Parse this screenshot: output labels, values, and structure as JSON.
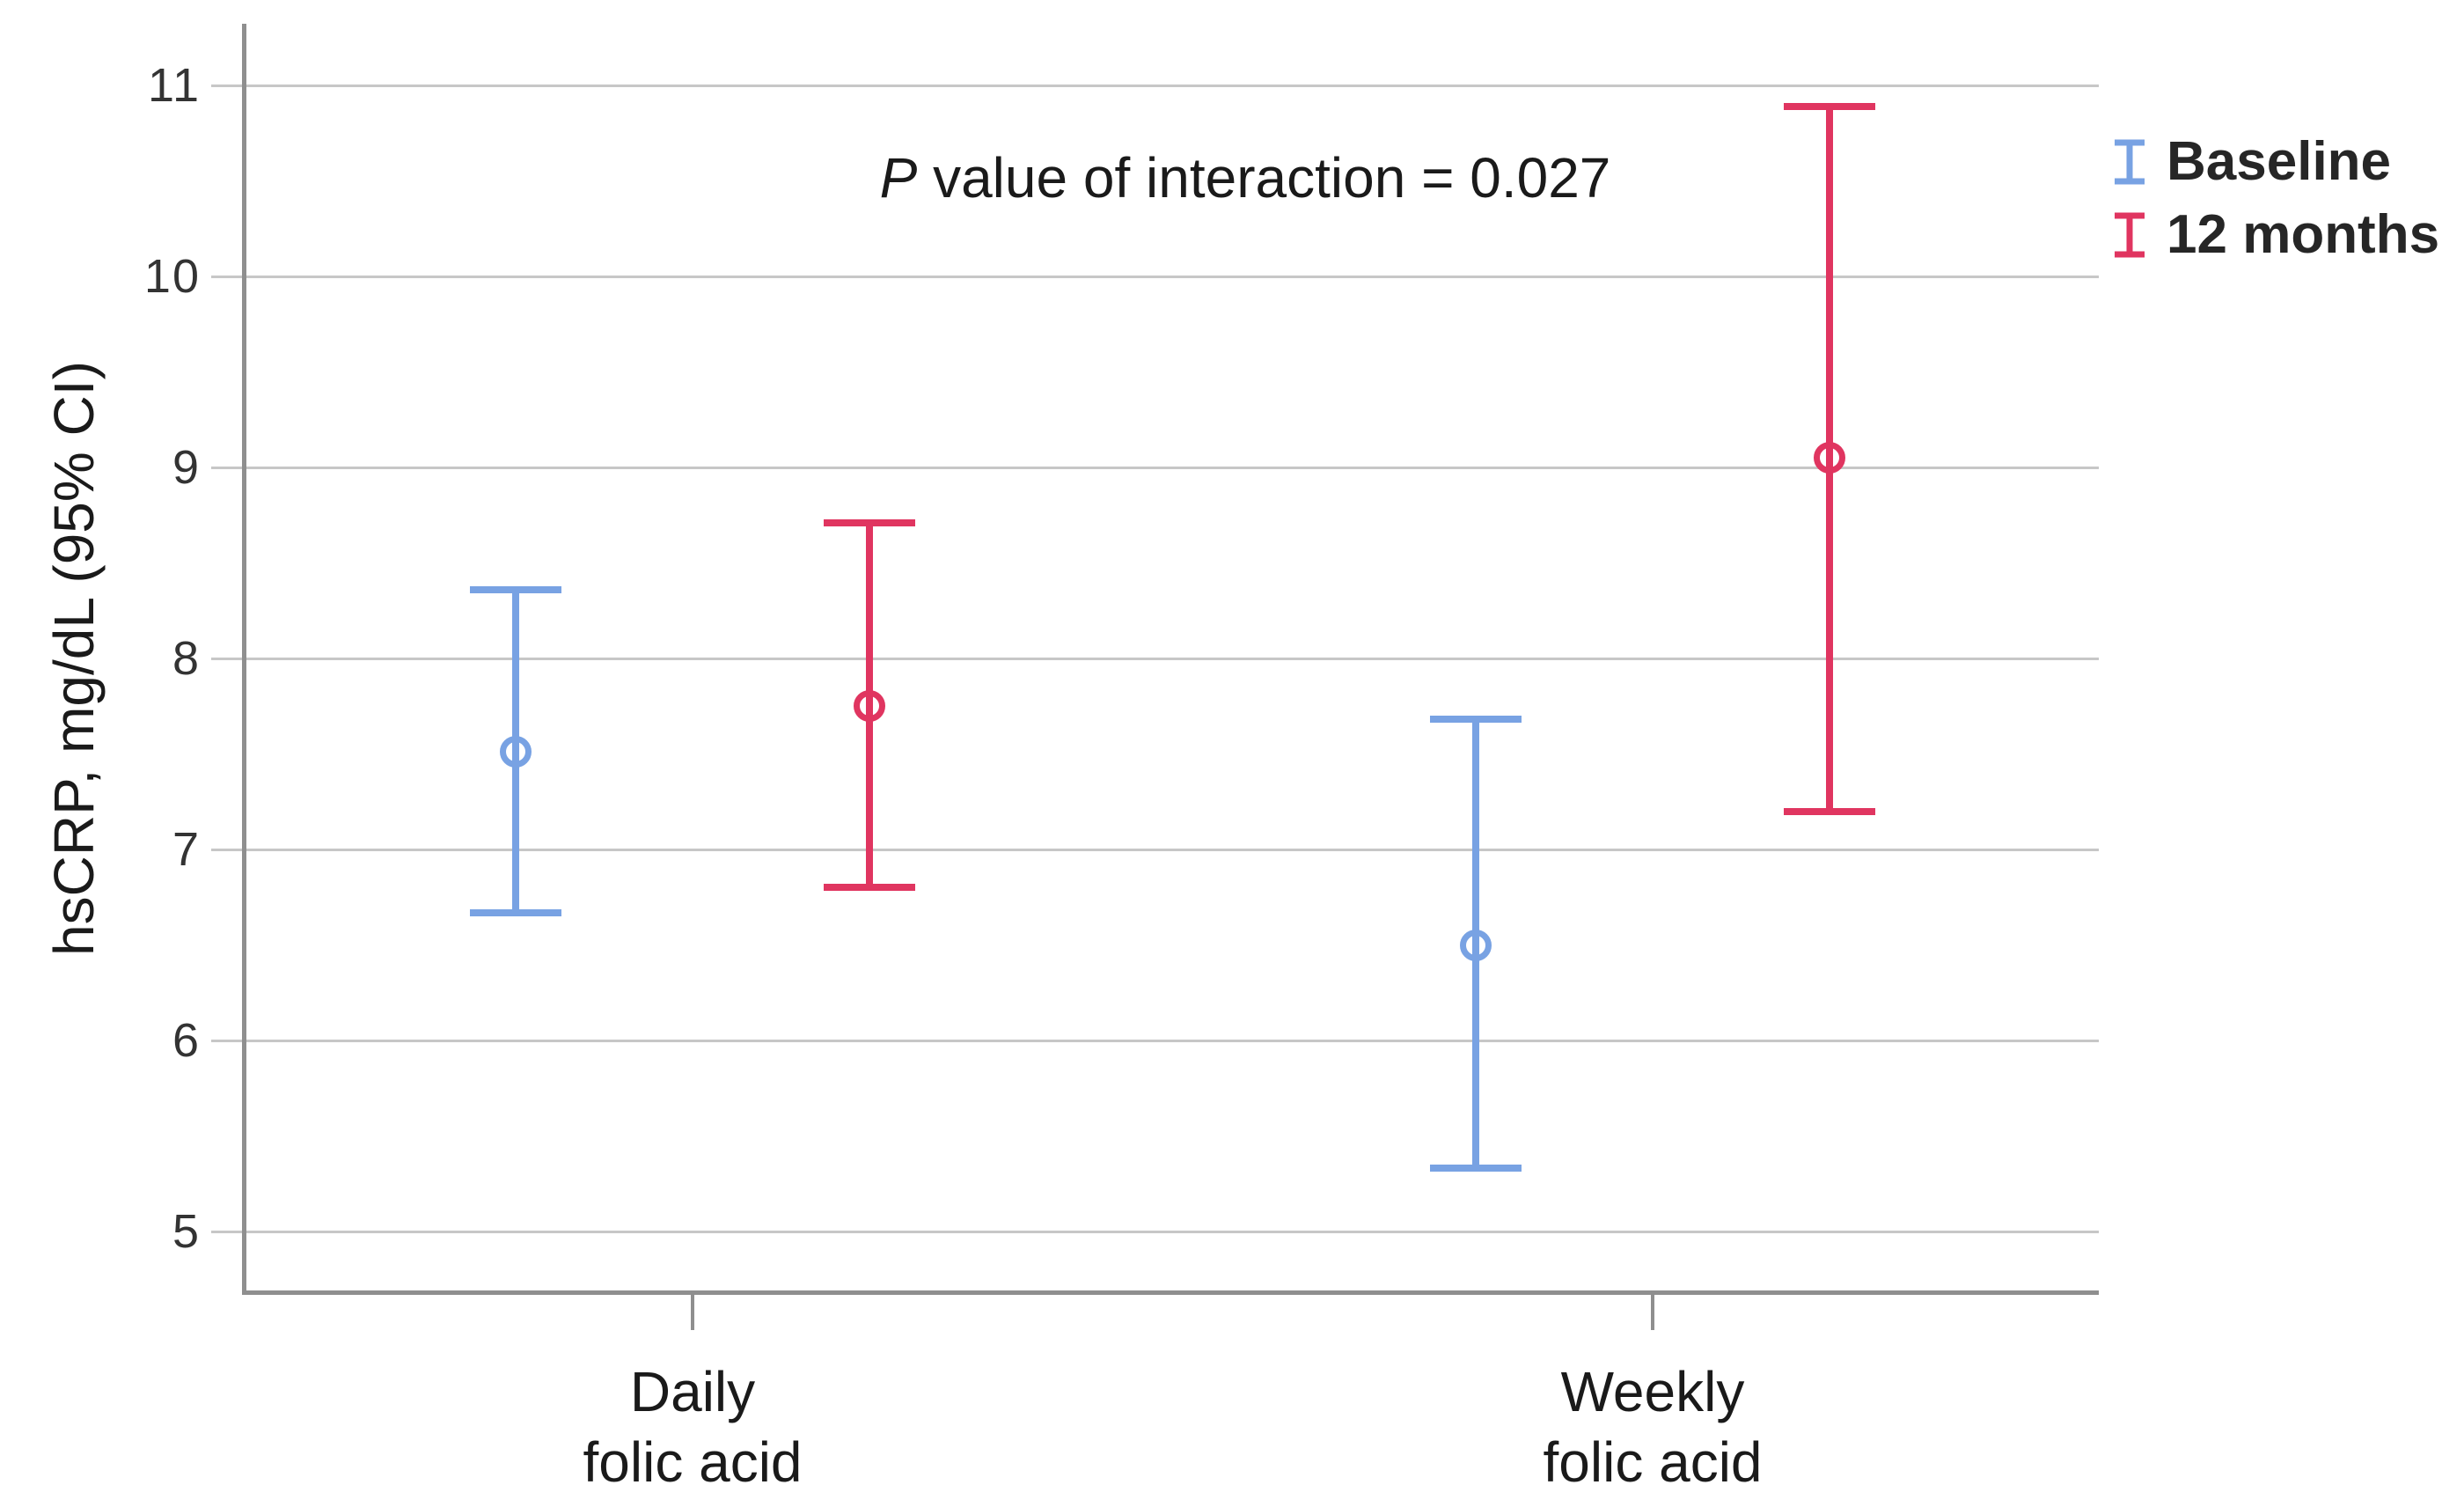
{
  "chart_data": {
    "type": "errorbar",
    "title": "",
    "xlabel": "",
    "ylabel": "hsCRP, mg/dL (95% CI)",
    "categories": [
      [
        "Daily",
        "folic acid"
      ],
      [
        "Weekly",
        "folic acid"
      ]
    ],
    "yticks": [
      5,
      6,
      7,
      8,
      9,
      10,
      11
    ],
    "ylim": [
      4.7,
      11.4
    ],
    "grid": true,
    "legend_position": "top-right",
    "annotation": "P value of interaction = 0.027",
    "series": [
      {
        "name": "Baseline",
        "color": "#78a2e3",
        "means": [
          7.51,
          6.5
        ],
        "ci_low": [
          6.67,
          5.33
        ],
        "ci_high": [
          8.36,
          7.68
        ]
      },
      {
        "name": "12 months",
        "color": "#e03560",
        "means": [
          7.75,
          9.05
        ],
        "ci_low": [
          6.8,
          7.2
        ],
        "ci_high": [
          8.71,
          10.89
        ]
      }
    ]
  },
  "colors": {
    "gridline": "#c7c7c7",
    "axis": "#8f8f8f",
    "tick_text": "#333333",
    "label_text": "#1a1a1a"
  }
}
